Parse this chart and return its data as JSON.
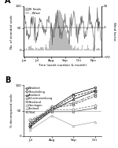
{
  "panel_A": {
    "title": "A",
    "xlabel": "Time (week number & month)",
    "ylabel_left": "No. of stranded seals",
    "ylabel_right": "Wind factor",
    "ylim_left": [
      -15,
      100
    ],
    "ylim_right": [
      -70,
      50
    ],
    "yticks_left": [
      0,
      50,
      100
    ],
    "yticks_right": [
      -70,
      0,
      50
    ],
    "xtick_labels": [
      "Jun",
      "Jul",
      "Aug",
      "Sep",
      "Oct",
      "Nov"
    ],
    "xtick_positions": [
      0,
      4,
      9,
      14,
      18,
      22
    ],
    "legend_seals": "III Seals",
    "legend_wind": "...Wind",
    "bar_color": "#bbbbbb",
    "wind_color": "#555555"
  },
  "panel_B": {
    "title": "B",
    "ylabel": "% decomposed seals",
    "ylim": [
      0,
      100
    ],
    "yticks": [
      0,
      50,
      100
    ],
    "xtick_labels": [
      "Jul",
      "Aug",
      "Sep",
      "Oct"
    ],
    "hline_y": 50,
    "series": [
      {
        "label": "Whalend",
        "x": [
          0,
          1,
          2,
          3
        ],
        "y": [
          22,
          55,
          82,
          95
        ],
        "color": "#111111",
        "ls": "-",
        "marker": "s"
      },
      {
        "label": "Terschelling",
        "x": [
          0,
          1,
          2,
          3
        ],
        "y": [
          20,
          52,
          78,
          90
        ],
        "color": "#111111",
        "ls": "--",
        "marker": "D"
      },
      {
        "label": "Ameland",
        "x": [
          0,
          1,
          2,
          3
        ],
        "y": [
          18,
          50,
          72,
          88
        ],
        "color": "#111111",
        "ls": "-",
        "marker": "^"
      },
      {
        "label": "Schiermonnikoog",
        "x": [
          0,
          1,
          2,
          3
        ],
        "y": [
          25,
          58,
          65,
          82
        ],
        "color": "#555555",
        "ls": "-.",
        "marker": "o"
      },
      {
        "label": "Friesland",
        "x": [
          0,
          1,
          2,
          3
        ],
        "y": [
          30,
          48,
          48,
          55
        ],
        "color": "#555555",
        "ls": "-",
        "marker": "s"
      },
      {
        "label": "Groningen",
        "x": [
          0,
          1,
          2,
          3
        ],
        "y": [
          32,
          52,
          52,
          60
        ],
        "color": "#777777",
        "ls": "--",
        "marker": "D"
      },
      {
        "label": "Zeeland",
        "x": [
          0,
          1,
          2,
          3
        ],
        "y": [
          12,
          40,
          20,
          28
        ],
        "color": "#aaaaaa",
        "ls": "-",
        "marker": "^"
      },
      {
        "label": "Total",
        "x": [
          0,
          1,
          2,
          3
        ],
        "y": [
          24,
          54,
          62,
          78
        ],
        "color": "#333333",
        "ls": "--",
        "marker": "o"
      }
    ]
  }
}
